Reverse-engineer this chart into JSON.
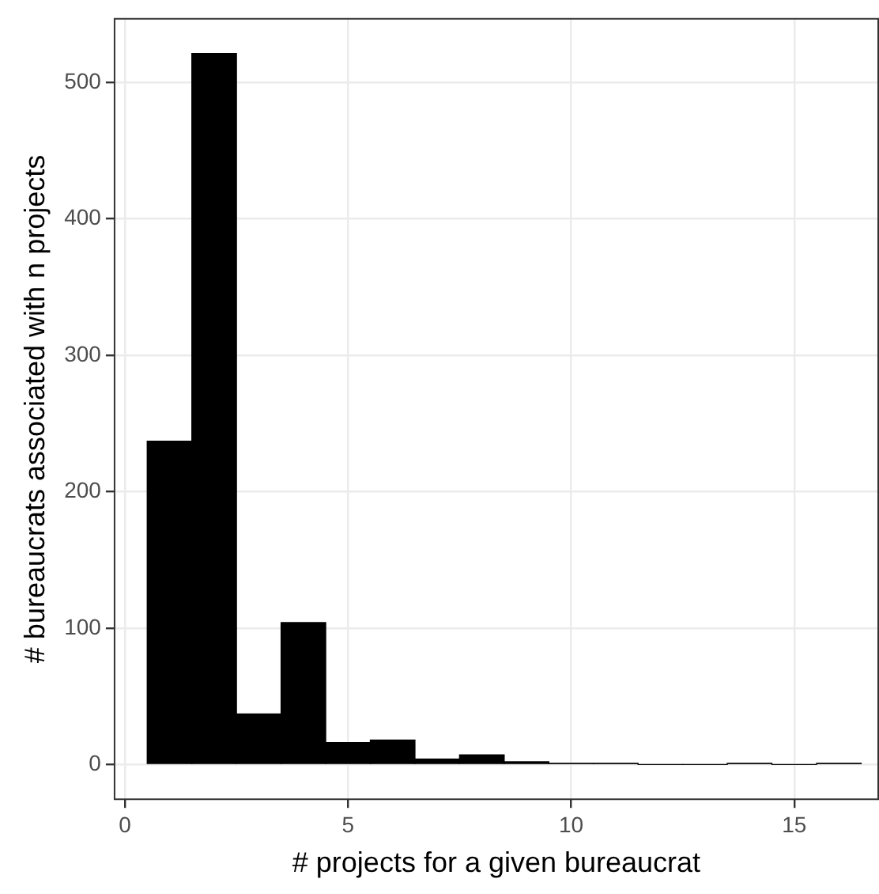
{
  "chart_data": {
    "type": "histogram",
    "xlabel": "# projects for a given bureaucrat",
    "ylabel": "# bureaucrats associated with n projects",
    "bins": [
      0.5,
      1.5,
      2.5,
      3.5,
      4.5,
      5.5,
      6.5,
      7.5,
      8.5,
      9.5,
      10.5,
      11.5,
      12.5,
      13.5,
      14.5,
      15.5,
      16.5
    ],
    "values": [
      237,
      521,
      37,
      104,
      16,
      18,
      4,
      7,
      2,
      1,
      1,
      0,
      0,
      1,
      0,
      1
    ],
    "color": "#000000",
    "xlim": [
      -0.25,
      16.9
    ],
    "xticks": [
      0,
      5,
      10,
      15
    ],
    "ylim": [
      -26,
      547
    ],
    "yticks": [
      0,
      100,
      200,
      300,
      400,
      500
    ],
    "grid": true
  }
}
